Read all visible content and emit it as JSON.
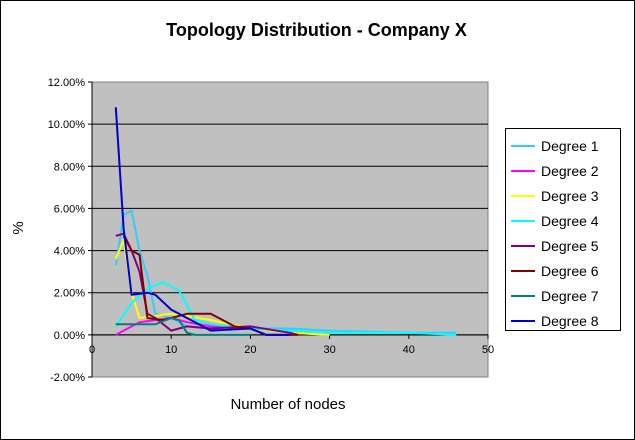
{
  "chart_data": {
    "type": "line",
    "title": "Topology Distribution - Company X",
    "xlabel": "Number of nodes",
    "ylabel": "%",
    "xlim": [
      0,
      50
    ],
    "ylim": [
      -0.02,
      0.12
    ],
    "x_ticks": [
      "0",
      "10",
      "20",
      "30",
      "40",
      "50"
    ],
    "y_ticks": [
      "-2.00%",
      "0.00%",
      "2.00%",
      "4.00%",
      "6.00%",
      "8.00%",
      "10.00%",
      "12.00%"
    ],
    "grid": "horizontal",
    "plot_background": "#c0c0c0",
    "legend_position": "right",
    "series": [
      {
        "name": "Degree 1",
        "color": "#33ccff",
        "points": [
          [
            3,
            0.033
          ],
          [
            4,
            0.057
          ],
          [
            5,
            0.059
          ],
          [
            6,
            0.04
          ],
          [
            7,
            0.028
          ],
          [
            8,
            0.01
          ],
          [
            10,
            0.008
          ],
          [
            12,
            0.004
          ],
          [
            15,
            0.003
          ],
          [
            20,
            0.003
          ],
          [
            25,
            0.003
          ],
          [
            30,
            0.002
          ],
          [
            40,
            0.001
          ],
          [
            46,
            0.001
          ]
        ]
      },
      {
        "name": "Degree 2",
        "color": "#ff00ff",
        "points": [
          [
            3,
            0.0
          ],
          [
            4,
            0.002
          ],
          [
            5,
            0.004
          ],
          [
            6,
            0.006
          ],
          [
            8,
            0.007
          ],
          [
            10,
            0.008
          ],
          [
            12,
            0.006
          ],
          [
            15,
            0.004
          ],
          [
            20,
            0.003
          ],
          [
            25,
            0.001
          ],
          [
            30,
            0.0
          ]
        ]
      },
      {
        "name": "Degree 3",
        "color": "#ffff00",
        "points": [
          [
            3,
            0.036
          ],
          [
            4,
            0.045
          ],
          [
            5,
            0.02
          ],
          [
            6,
            0.008
          ],
          [
            8,
            0.009
          ],
          [
            10,
            0.01
          ],
          [
            12,
            0.009
          ],
          [
            15,
            0.007
          ],
          [
            20,
            0.003
          ],
          [
            25,
            0.001
          ],
          [
            30,
            0.0
          ]
        ]
      },
      {
        "name": "Degree 4",
        "color": "#00ffff",
        "points": [
          [
            3,
            0.004
          ],
          [
            5,
            0.015
          ],
          [
            7,
            0.022
          ],
          [
            9,
            0.025
          ],
          [
            11,
            0.021
          ],
          [
            12,
            0.014
          ],
          [
            13,
            0.007
          ],
          [
            15,
            0.005
          ],
          [
            20,
            0.003
          ],
          [
            25,
            0.002
          ],
          [
            30,
            0.001
          ],
          [
            40,
            0.001
          ],
          [
            46,
            0.0
          ]
        ]
      },
      {
        "name": "Degree 5",
        "color": "#800080",
        "points": [
          [
            3,
            0.047
          ],
          [
            4,
            0.048
          ],
          [
            5,
            0.04
          ],
          [
            6,
            0.03
          ],
          [
            7,
            0.01
          ],
          [
            8,
            0.008
          ],
          [
            10,
            0.002
          ],
          [
            12,
            0.004
          ],
          [
            15,
            0.003
          ],
          [
            20,
            0.004
          ],
          [
            25,
            0.001
          ],
          [
            26,
            0.0
          ]
        ]
      },
      {
        "name": "Degree 6",
        "color": "#800000",
        "points": [
          [
            4,
            0.047
          ],
          [
            5,
            0.04
          ],
          [
            6,
            0.038
          ],
          [
            7,
            0.008
          ],
          [
            9,
            0.007
          ],
          [
            10,
            0.008
          ],
          [
            12,
            0.01
          ],
          [
            15,
            0.01
          ],
          [
            18,
            0.004
          ],
          [
            20,
            0.003
          ],
          [
            22,
            0.0
          ],
          [
            26,
            0.0
          ]
        ]
      },
      {
        "name": "Degree 7",
        "color": "#008080",
        "points": [
          [
            3,
            0.005
          ],
          [
            5,
            0.005
          ],
          [
            8,
            0.005
          ],
          [
            10,
            0.008
          ],
          [
            11,
            0.007
          ],
          [
            12,
            0.001
          ],
          [
            13,
            0.0
          ],
          [
            20,
            0.0
          ]
        ]
      },
      {
        "name": "Degree 8",
        "color": "#0000cc",
        "points": [
          [
            3,
            0.108
          ],
          [
            4,
            0.05
          ],
          [
            5,
            0.019
          ],
          [
            7,
            0.02
          ],
          [
            8,
            0.019
          ],
          [
            10,
            0.012
          ],
          [
            12,
            0.008
          ],
          [
            15,
            0.002
          ],
          [
            20,
            0.003
          ],
          [
            22,
            0.0
          ],
          [
            25,
            0.0
          ]
        ]
      }
    ]
  }
}
